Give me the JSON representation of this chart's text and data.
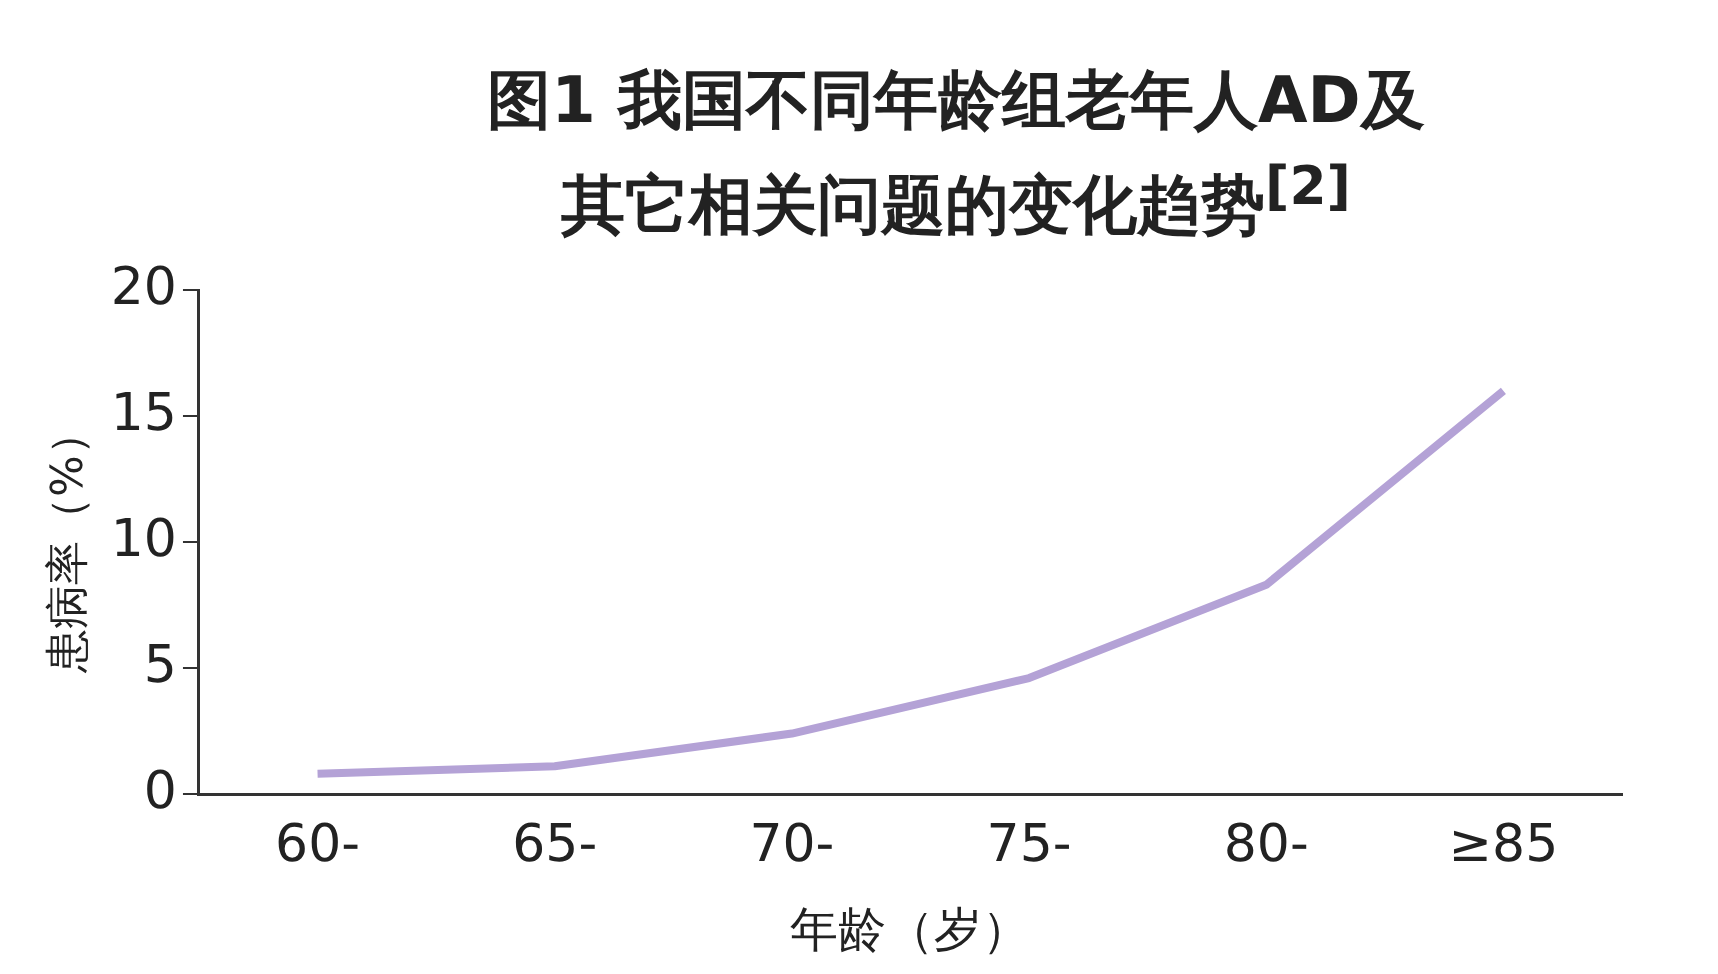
{
  "chart_data": {
    "type": "line",
    "title": "图1 我国不同年龄组老年人AD及其它相关问题的变化趋势$^{[2]}$",
    "xlabel": "年龄（岁）",
    "ylabel": "患病率（%）",
    "categories": [
      "60-",
      "65-",
      "70-",
      "75-",
      "80-",
      "≥85"
    ],
    "series": [
      {
        "color": "#b4a2d6",
        "values": [
          0.8,
          1.1,
          2.4,
          4.6,
          8.3,
          16.0
        ]
      }
    ],
    "ylim": [
      0,
      20
    ],
    "yticks": [
      0,
      5,
      10,
      15,
      20
    ],
    "grid": false,
    "legend": false,
    "marker": "none",
    "line_style": "solid"
  }
}
